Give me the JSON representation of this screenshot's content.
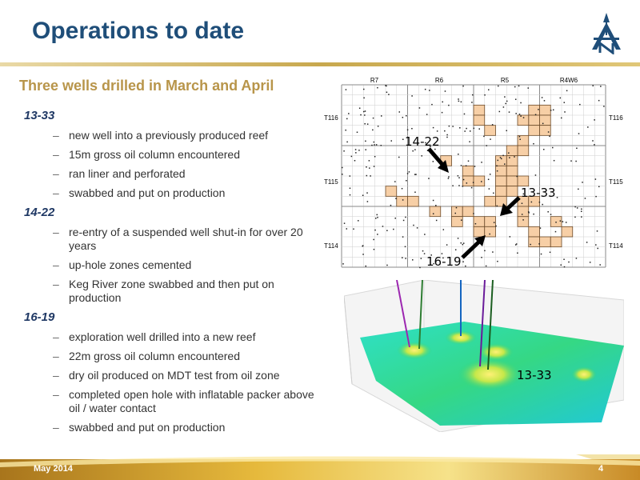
{
  "header": {
    "title": "Operations to date",
    "subtitle": "Three wells drilled in March and April"
  },
  "wells": [
    {
      "name": "13-33",
      "bullets": [
        "new well into a previously produced reef",
        "15m gross oil column encountered",
        "ran liner and perforated",
        "swabbed and put on production"
      ]
    },
    {
      "name": "14-22",
      "bullets": [
        "re-entry of a suspended well shut-in for over 20 years",
        "up-hole zones cemented",
        "Keg River zone swabbed and then put on production"
      ]
    },
    {
      "name": "16-19",
      "bullets": [
        "exploration well drilled into a new reef",
        "22m gross oil column encountered",
        "dry oil produced on MDT test from oil zone",
        "completed open hole with inflatable packer above oil / water contact",
        "swabbed and put on production"
      ]
    }
  ],
  "map": {
    "ranges": [
      "R7",
      "R6",
      "R5",
      "R4W6"
    ],
    "townships_left": [
      "T116",
      "T115",
      "T114"
    ],
    "townships_right": [
      "T116",
      "T115",
      "T114"
    ],
    "callouts": [
      "14-22",
      "13-33",
      "16-19"
    ],
    "lease_color": "#f7cfa6"
  },
  "model": {
    "label": "13-33"
  },
  "footer": {
    "date": "May 2014",
    "page": "4"
  },
  "colors": {
    "title": "#1f4e79",
    "subtitle": "#b8954a",
    "well_heading": "#1f3864",
    "gold": "#c8a84e"
  }
}
